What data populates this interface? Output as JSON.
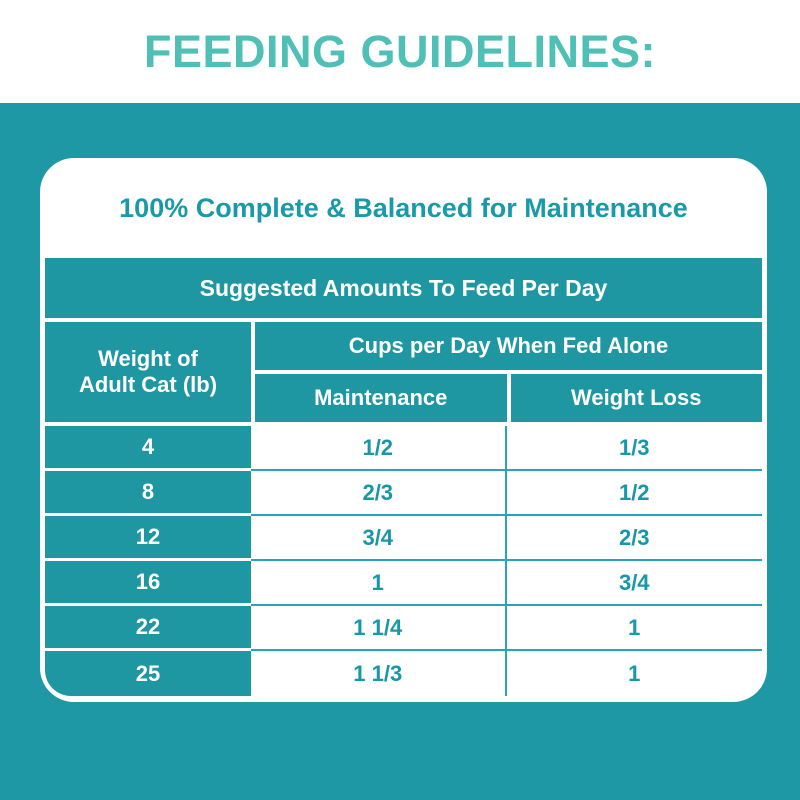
{
  "title": "FEEDING GUIDELINES:",
  "card": {
    "heading": "100% Complete & Balanced for Maintenance",
    "table": {
      "title": "Suggested Amounts To Feed Per Day",
      "weight_header": {
        "line1": "Weight of",
        "line2": "Adult Cat (lb)"
      },
      "group_header": "Cups per Day When Fed Alone",
      "columns": {
        "maintenance": "Maintenance",
        "weight_loss": "Weight Loss"
      },
      "rows": [
        {
          "weight": "4",
          "maintenance": "1/2",
          "weight_loss": "1/3"
        },
        {
          "weight": "8",
          "maintenance": "2/3",
          "weight_loss": "1/2"
        },
        {
          "weight": "12",
          "maintenance": "3/4",
          "weight_loss": "2/3"
        },
        {
          "weight": "16",
          "maintenance": "1",
          "weight_loss": "3/4"
        },
        {
          "weight": "22",
          "maintenance": "1 1/4",
          "weight_loss": "1"
        },
        {
          "weight": "25",
          "maintenance": "1 1/3",
          "weight_loss": "1"
        }
      ]
    }
  },
  "colors": {
    "background_teal": "#1E98A4",
    "cell_teal": "#1F97A2",
    "title_teal": "#4FC0B6",
    "text_teal": "#1797A8",
    "grid_line_teal": "#2AA4BA",
    "white": "#FFFFFF"
  },
  "chart_data": {
    "type": "table",
    "title": "Suggested Amounts To Feed Per Day",
    "group_header": "Cups per Day When Fed Alone",
    "columns": [
      "Weight of Adult Cat (lb)",
      "Maintenance",
      "Weight Loss"
    ],
    "rows": [
      [
        "4",
        "1/2",
        "1/3"
      ],
      [
        "8",
        "2/3",
        "1/2"
      ],
      [
        "12",
        "3/4",
        "2/3"
      ],
      [
        "16",
        "1",
        "3/4"
      ],
      [
        "22",
        "1 1/4",
        "1"
      ],
      [
        "25",
        "1 1/3",
        "1"
      ]
    ]
  }
}
